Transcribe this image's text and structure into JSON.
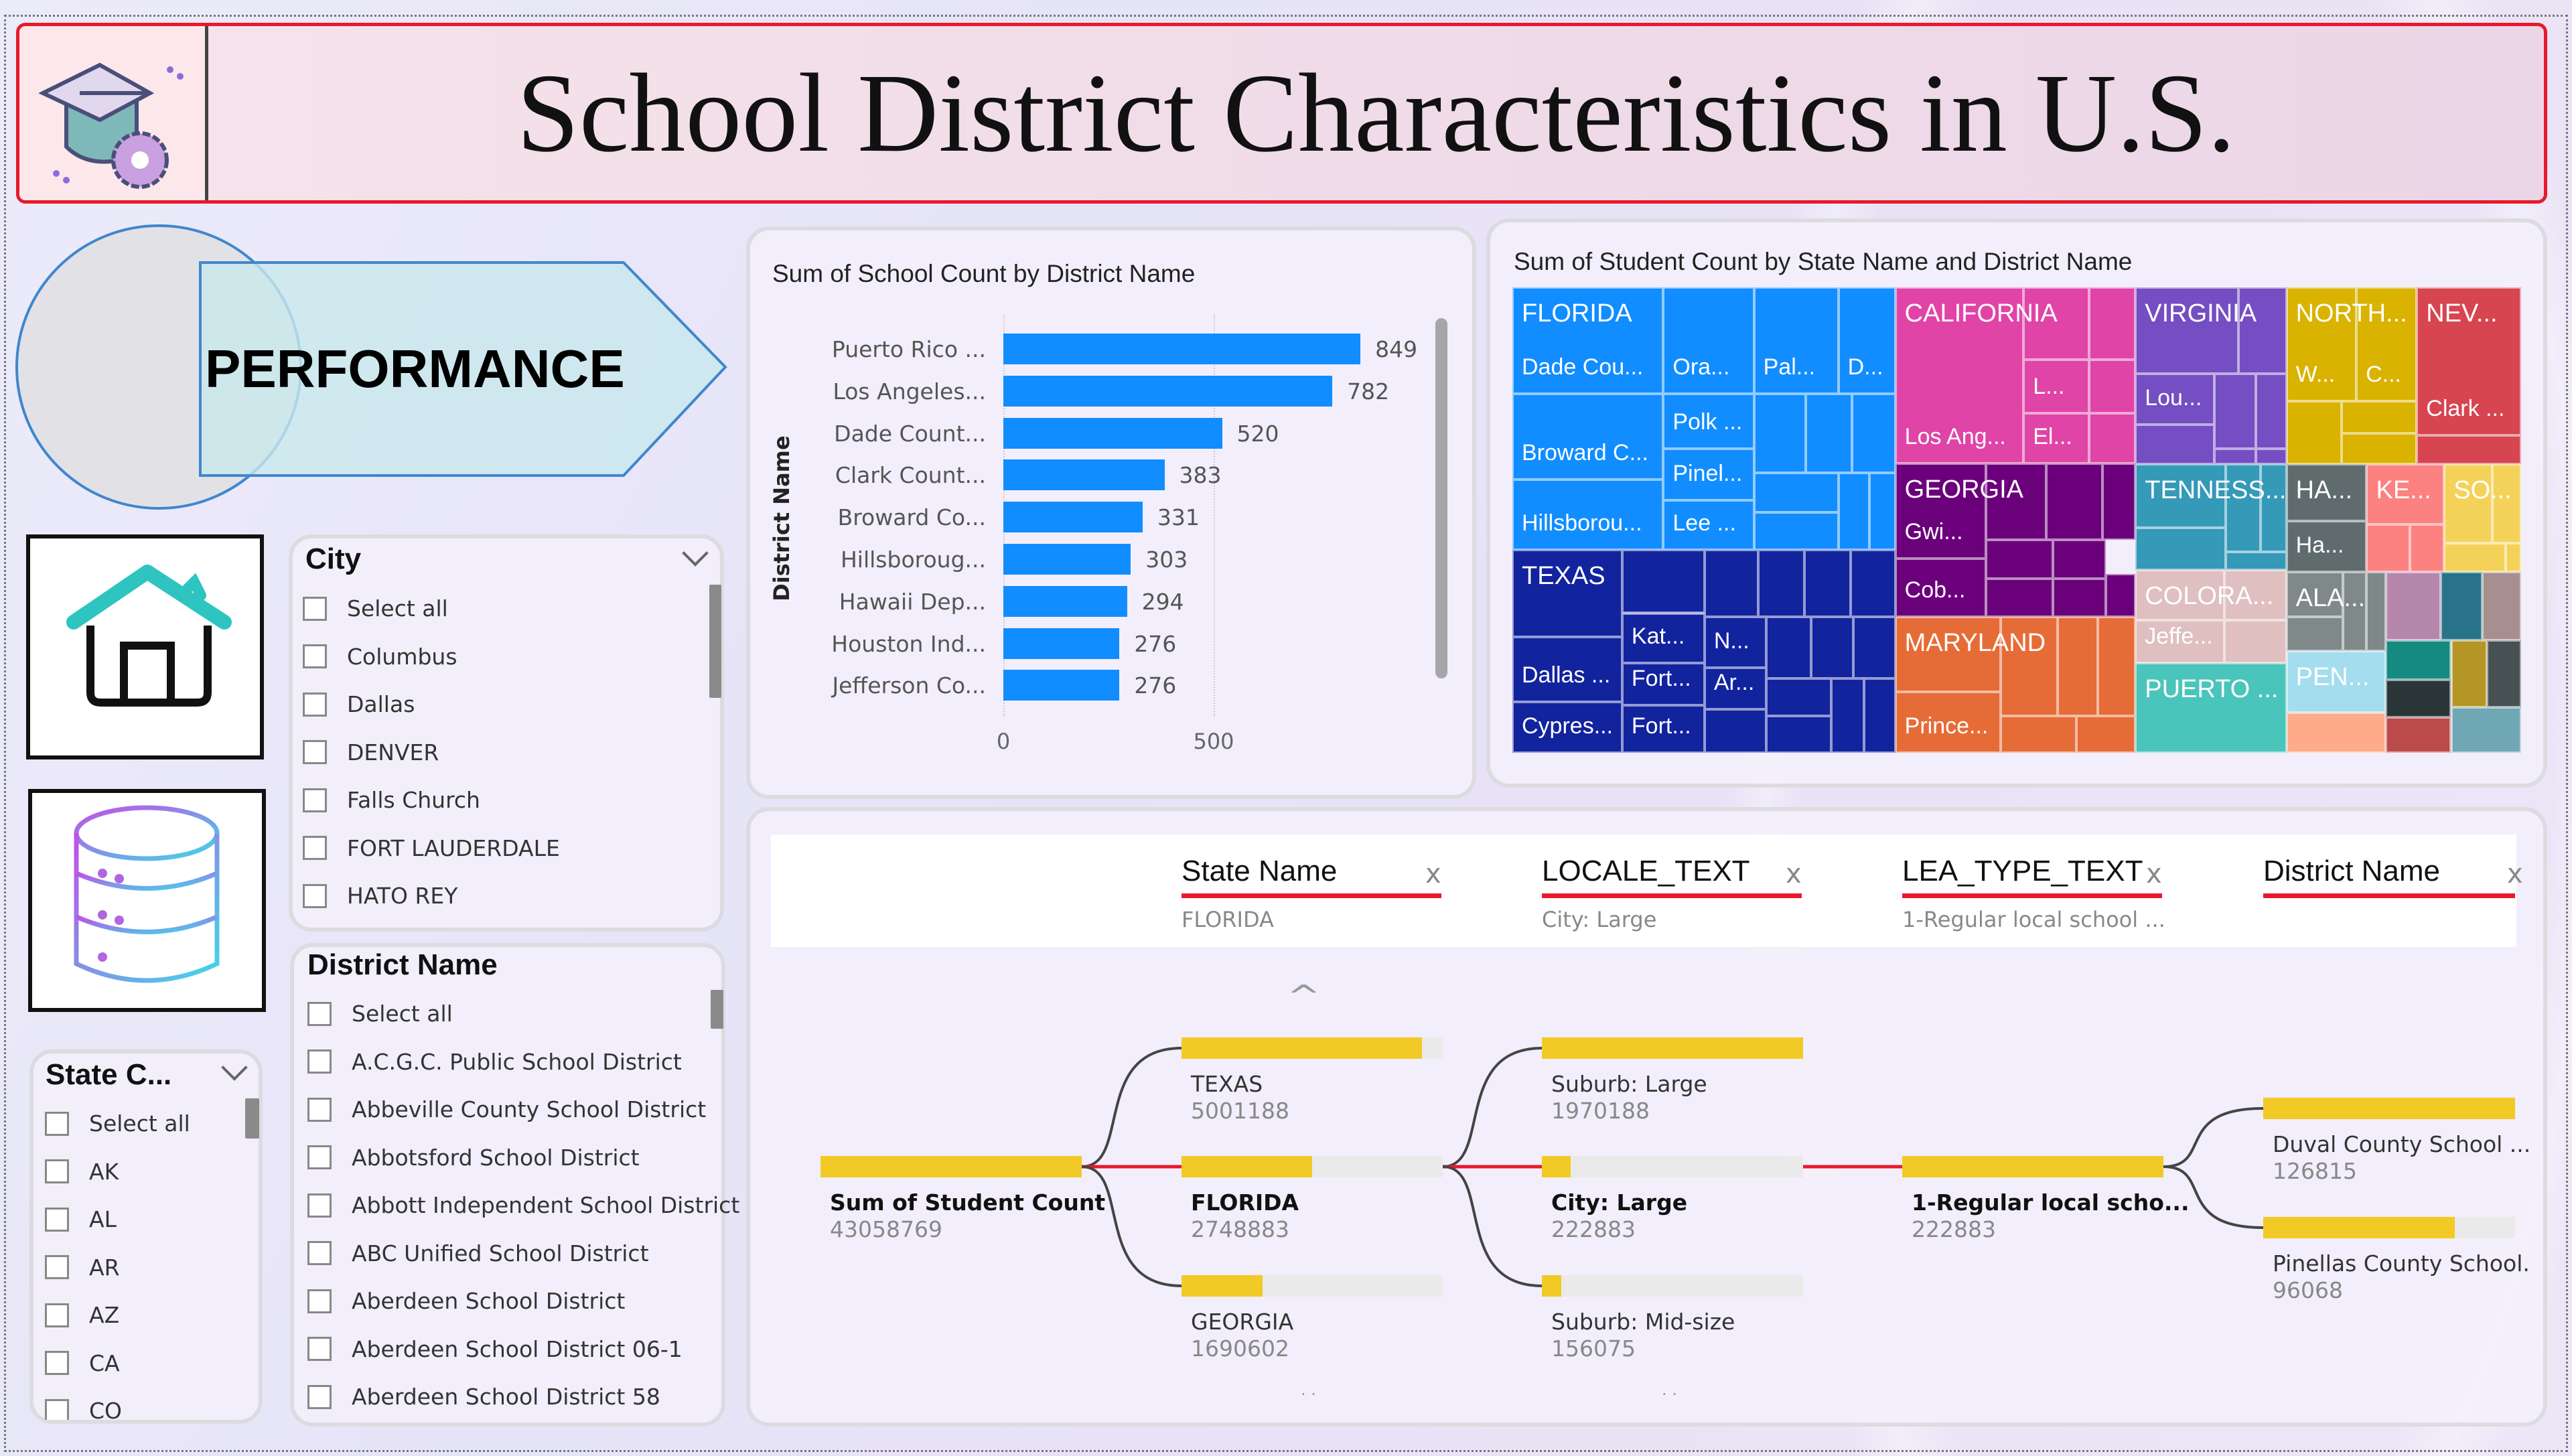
{
  "header": {
    "title": "School District Characteristics in U.S.",
    "logo_icon": "graduation-cap-gear-icon"
  },
  "nav": {
    "performance_label": "PERFORMANCE",
    "home_icon": "home-icon",
    "database_icon": "database-icon"
  },
  "slicers": {
    "city": {
      "title": "City",
      "items": [
        "Select all",
        "Columbus",
        "Dallas",
        "DENVER",
        "Falls Church",
        "FORT LAUDERDALE",
        "HATO REY"
      ]
    },
    "district": {
      "title": "District Name",
      "items": [
        "Select all",
        "A.C.G.C. Public School District",
        "Abbeville County School District",
        "Abbotsford School District",
        "Abbott Independent School District",
        "ABC Unified School District",
        "Aberdeen School District",
        "Aberdeen School District 06-1",
        "Aberdeen School District 58"
      ]
    },
    "state": {
      "title": "State C...",
      "items": [
        "Select all",
        "AK",
        "AL",
        "AR",
        "AZ",
        "CA",
        "CO"
      ]
    }
  },
  "chart_data": [
    {
      "type": "bar",
      "orientation": "horizontal",
      "title": "Sum of School Count by District Name",
      "ylabel": "District Name",
      "xlabel": "",
      "categories": [
        "Puerto Rico ...",
        "Los Angeles...",
        "Dade Count...",
        "Clark Count...",
        "Broward Co...",
        "Hillsboroug...",
        "Hawaii Dep...",
        "Houston Ind...",
        "Jefferson Co..."
      ],
      "values": [
        849,
        782,
        520,
        383,
        331,
        303,
        294,
        276,
        276
      ],
      "xticks": [
        "0",
        "500"
      ],
      "xlim": [
        0,
        900
      ],
      "bar_color": "#118DFF",
      "grid": true
    },
    {
      "type": "treemap",
      "title": "Sum of Student Count by State Name and District Name",
      "states": [
        {
          "name": "FLORIDA",
          "color": "#118DFF",
          "districts": [
            "Dade Cou...",
            "Ora...",
            "Pal...",
            "D...",
            "Broward C...",
            "Hillsborou...",
            "Polk ...",
            "Pinel...",
            "Lee ..."
          ]
        },
        {
          "name": "TEXAS",
          "color": "#12239E",
          "districts": [
            "Dallas ...",
            "Cypres...",
            "Kat...",
            "Fort...",
            "Fort...",
            "N...",
            "Ar..."
          ]
        },
        {
          "name": "CALIFORNIA",
          "color": "#E044A7",
          "districts": [
            "Los Ang...",
            "L...",
            "El..."
          ]
        },
        {
          "name": "GEORGIA",
          "color": "#6B007B",
          "districts": [
            "Gwi...",
            "Cob..."
          ]
        },
        {
          "name": "MARYLAND",
          "color": "#E66C37",
          "districts": [
            "Prince..."
          ]
        },
        {
          "name": "VIRGINIA",
          "color": "#744EC2",
          "districts": [
            "Lou..."
          ]
        },
        {
          "name": "NORTH...",
          "color": "#D9B300",
          "districts": [
            "W...",
            "C..."
          ]
        },
        {
          "name": "NEV...",
          "color": "#D64550",
          "districts": [
            "Clark ..."
          ]
        },
        {
          "name": "TENNESS...",
          "color": "#3599B8",
          "districts": []
        },
        {
          "name": "COLORA...",
          "color": "#DFBFBF",
          "districts": [
            "Jeffe..."
          ]
        },
        {
          "name": "PUERTO ...",
          "color": "#4AC5BB",
          "districts": []
        },
        {
          "name": "HA...",
          "color": "#5F6B6D",
          "districts": [
            "Ha..."
          ]
        },
        {
          "name": "KE...",
          "color": "#FB8281",
          "districts": []
        },
        {
          "name": "SO...",
          "color": "#F4D25A",
          "districts": []
        },
        {
          "name": "ALA...",
          "color": "#7F898A",
          "districts": []
        },
        {
          "name": "PEN...",
          "color": "#A4DDEE",
          "districts": []
        }
      ],
      "unlabeled_colors": [
        "#FDAB89",
        "#B687AC",
        "#28738A",
        "#A78F8F",
        "#168980",
        "#293537",
        "#BB4A4A",
        "#B59525",
        "#475052",
        "#6FA7B5"
      ]
    }
  ],
  "decomposition": {
    "columns": [
      {
        "header": "State Name",
        "selected": "FLORIDA"
      },
      {
        "header": "LOCALE_TEXT",
        "selected": "City: Large"
      },
      {
        "header": "LEA_TYPE_TEXT",
        "selected": "1-Regular local school ..."
      },
      {
        "header": "District Name",
        "selected": ""
      }
    ],
    "root": {
      "label": "Sum of Student Count",
      "value": "43058769",
      "fill": 1.0
    },
    "levels": [
      [
        {
          "label": "TEXAS",
          "value": "5001188",
          "fill": 0.92
        },
        {
          "label": "FLORIDA",
          "value": "2748883",
          "fill": 0.5,
          "selected": true
        },
        {
          "label": "GEORGIA",
          "value": "1690602",
          "fill": 0.31
        }
      ],
      [
        {
          "label": "Suburb: Large",
          "value": "1970188",
          "fill": 1.0
        },
        {
          "label": "City: Large",
          "value": "222883",
          "fill": 0.11,
          "selected": true
        },
        {
          "label": "Suburb: Mid-size",
          "value": "156075",
          "fill": 0.075
        }
      ],
      [
        {
          "label": "1-Regular local scho...",
          "value": "222883",
          "fill": 1.0,
          "selected": true
        }
      ],
      [
        {
          "label": "Duval County School ...",
          "value": "126815",
          "fill": 1.0
        },
        {
          "label": "Pinellas County School.",
          "value": "96068",
          "fill": 0.76
        }
      ]
    ],
    "close_glyph": "x",
    "accent": "#E8192C",
    "bar_color": "#F2CA26"
  }
}
